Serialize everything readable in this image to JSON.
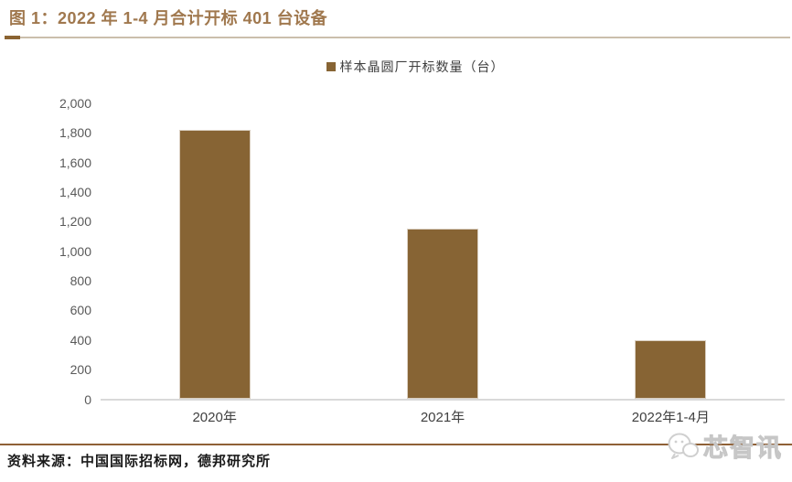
{
  "figure": {
    "title": "图 1：2022 年 1-4 月合计开标 401 台设备",
    "source": "资料来源：中国国际招标网，德邦研究所",
    "watermark": "芯智讯"
  },
  "chart_data": {
    "type": "bar",
    "title": "图 1：2022 年 1-4 月合计开标 401 台设备",
    "legend": [
      "样本晶圆厂开标数量（台）"
    ],
    "legend_position": "top-center",
    "categories": [
      "2020年",
      "2021年",
      "2022年1-4月"
    ],
    "values": [
      1820,
      1150,
      401
    ],
    "xlabel": "",
    "ylabel": "",
    "ylim": [
      0,
      2000
    ],
    "ytick_step": 200,
    "yticks": [
      "0",
      "200",
      "400",
      "600",
      "800",
      "1,000",
      "1,200",
      "1,400",
      "1,600",
      "1,800",
      "2,000"
    ],
    "grid": false,
    "bar_color": "#876434"
  },
  "colors": {
    "title": "#A0784E",
    "bar": "#876434",
    "bar_border": "#D9CEC0",
    "axis_line": "#D9D9D9",
    "tick_label": "#595959",
    "underline": "#CBBFAC",
    "underline_accent": "#8B6332",
    "bottom_rule": "#8F6036",
    "watermark": "#D9D9D9"
  }
}
